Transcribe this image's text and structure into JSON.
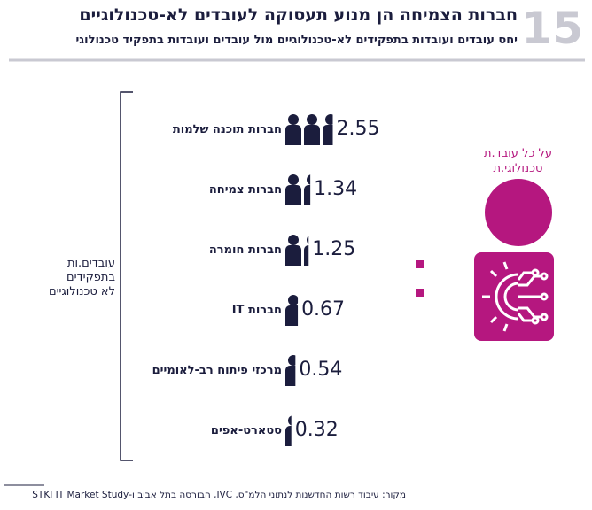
{
  "chart_data": {
    "type": "pictogram",
    "chart_number": "15",
    "title": "חברות הצמיחה הן מנוע תעסוקה לעובדים לא-טכנולוגיים",
    "subtitle": "יחס עובדים ועובדות בתפקידים לא-טכנולוגיים מול עובדים ועובדות בתפקיד טכנולוגי",
    "categories": [
      "חברות תוכנה שלמות",
      "חברות צמיחה",
      "חברות חומרה",
      "חברות IT",
      "מרכזי פיתוח רב-לאומיים",
      "סטארט-אפים"
    ],
    "values": [
      2.55,
      1.34,
      1.25,
      0.67,
      0.54,
      0.32
    ],
    "color": "#1b1d3d",
    "accent_color": "#b5177f",
    "left_label": [
      "עובדים.ות",
      "בתפקידים",
      "לא טכנולוגיים"
    ],
    "right_label": [
      "על כל עובד.ת",
      "טכנולוגי.ת"
    ],
    "source": "מקור: עיבוד רשות החדשנות לנתוני הלמ\"ס, IVC, הבורסה בתל אביב ו-STKI IT Market Study"
  }
}
